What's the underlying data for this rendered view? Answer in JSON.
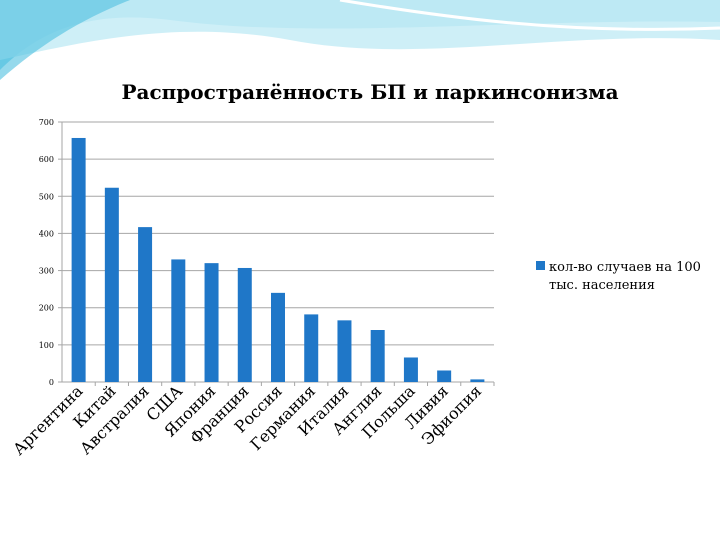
{
  "colors": {
    "bar": "#1f77c8",
    "header_wave_light": "#c6ecf6",
    "header_wave_mid": "#8dd7ec",
    "header_wave_dark": "#4fbfe0",
    "grid": "#a6a6a6"
  },
  "chart_data": {
    "type": "bar",
    "title": "Распространённость БП и паркинсонизма",
    "xlabel": "",
    "ylabel": "",
    "ylim": [
      0,
      700
    ],
    "yticks": [
      0,
      100,
      200,
      300,
      400,
      500,
      600,
      700
    ],
    "grid": true,
    "legend_position": "right",
    "categories": [
      "Аргентина",
      "Китай",
      "Австралия",
      "США",
      "Япония",
      "Франция",
      "Россия",
      "Германия",
      "Италия",
      "Англия",
      "Польша",
      "Ливия",
      "Эфиопия"
    ],
    "series": [
      {
        "name": "кол-во случаев на 100 тыс. населения",
        "values": [
          657,
          523,
          417,
          330,
          320,
          307,
          240,
          182,
          166,
          140,
          66,
          31,
          7
        ]
      }
    ]
  },
  "legend": {
    "line1": "кол-во случаев на 100",
    "line2": "тыс. населения"
  }
}
